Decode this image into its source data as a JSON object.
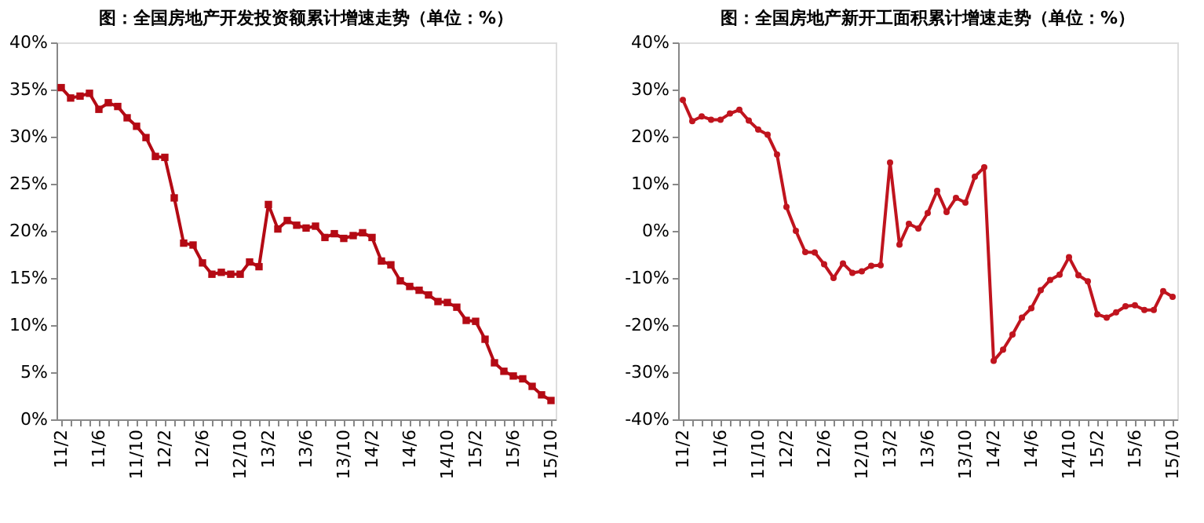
{
  "chart_data": [
    {
      "type": "line",
      "title": "图：全国房地产开发投资额累计增速走势（单位：%）",
      "marker": "square",
      "grid": false,
      "categories": [
        "11/2",
        null,
        null,
        null,
        "11/6",
        null,
        null,
        null,
        "11/10",
        null,
        null,
        "12/2",
        null,
        null,
        null,
        "12/6",
        null,
        null,
        null,
        "12/10",
        null,
        null,
        "13/2",
        null,
        null,
        null,
        "13/6",
        null,
        null,
        null,
        "13/10",
        null,
        null,
        "14/2",
        null,
        null,
        null,
        "14/6",
        null,
        null,
        null,
        "14/10",
        null,
        null,
        "15/2",
        null,
        null,
        null,
        "15/6",
        null,
        null,
        null,
        "15/10"
      ],
      "series": [
        {
          "color": "#b40a14",
          "values": [
            35.2,
            34.1,
            34.3,
            34.6,
            32.9,
            33.6,
            33.2,
            32.0,
            31.1,
            29.9,
            27.9,
            27.8,
            23.5,
            18.7,
            18.5,
            16.6,
            15.4,
            15.6,
            15.4,
            15.4,
            16.7,
            16.2,
            22.8,
            20.2,
            21.1,
            20.6,
            20.3,
            20.5,
            19.3,
            19.7,
            19.2,
            19.5,
            19.8,
            19.3,
            16.8,
            16.4,
            14.7,
            14.1,
            13.7,
            13.2,
            12.5,
            12.4,
            11.9,
            10.5,
            10.4,
            8.5,
            6.0,
            5.1,
            4.6,
            4.3,
            3.5,
            2.6,
            2.0
          ]
        }
      ],
      "ylim": [
        0,
        40
      ],
      "yticks": [
        {
          "value": 0,
          "label": "0%"
        },
        {
          "value": 5,
          "label": "5%"
        },
        {
          "value": 10,
          "label": "10%"
        },
        {
          "value": 15,
          "label": "15%"
        },
        {
          "value": 20,
          "label": "20%"
        },
        {
          "value": 25,
          "label": "25%"
        },
        {
          "value": 30,
          "label": "30%"
        },
        {
          "value": 35,
          "label": "35%"
        },
        {
          "value": 40,
          "label": "40%"
        }
      ]
    },
    {
      "type": "line",
      "title": "图：全国房地产新开工面积累计增速走势（单位：%）",
      "marker": "circle",
      "grid": false,
      "categories": [
        "11/2",
        null,
        null,
        null,
        "11/6",
        null,
        null,
        null,
        "11/10",
        null,
        null,
        "12/2",
        null,
        null,
        null,
        "12/6",
        null,
        null,
        null,
        "12/10",
        null,
        null,
        "13/2",
        null,
        null,
        null,
        "13/6",
        null,
        null,
        null,
        "13/10",
        null,
        null,
        "14/2",
        null,
        null,
        null,
        "14/6",
        null,
        null,
        null,
        "14/10",
        null,
        null,
        "15/2",
        null,
        null,
        null,
        "15/6",
        null,
        null,
        null,
        "15/10"
      ],
      "series": [
        {
          "color": "#c0141e",
          "values": [
            27.8,
            23.3,
            24.3,
            23.6,
            23.6,
            24.9,
            25.7,
            23.4,
            21.5,
            20.4,
            16.2,
            5.1,
            0.0,
            -4.5,
            -4.6,
            -7.1,
            -10.0,
            -6.9,
            -8.9,
            -8.6,
            -7.4,
            -7.3,
            14.5,
            -2.9,
            1.5,
            0.5,
            3.8,
            8.5,
            4.0,
            7.0,
            6.0,
            11.5,
            13.5,
            -27.6,
            -25.2,
            -22.0,
            -18.4,
            -16.4,
            -12.6,
            -10.4,
            -9.3,
            -5.6,
            -9.4,
            -10.7,
            -17.7,
            -18.4,
            -17.3,
            -16.0,
            -15.8,
            -16.8,
            -16.8,
            -12.8,
            -14.0
          ]
        }
      ],
      "ylim": [
        -40,
        40
      ],
      "yticks": [
        {
          "value": -40,
          "label": "-40%"
        },
        {
          "value": -30,
          "label": "-30%"
        },
        {
          "value": -20,
          "label": "-20%"
        },
        {
          "value": -10,
          "label": "-10%"
        },
        {
          "value": 0,
          "label": "0%"
        },
        {
          "value": 10,
          "label": "10%"
        },
        {
          "value": 20,
          "label": "20%"
        },
        {
          "value": 30,
          "label": "30%"
        },
        {
          "value": 40,
          "label": "40%"
        }
      ]
    }
  ]
}
